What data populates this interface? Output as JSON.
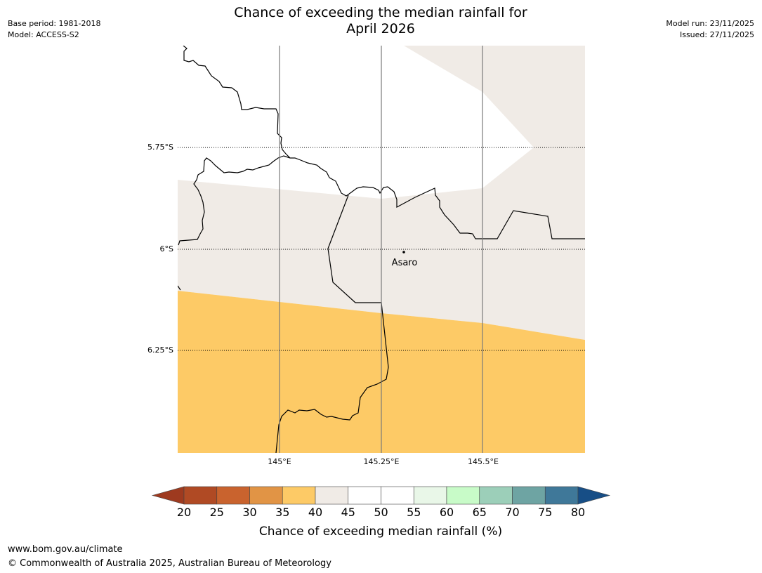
{
  "title": {
    "line1": "Chance of exceeding the median rainfall for",
    "line2": "April 2026"
  },
  "meta": {
    "base_period": "Base period: 1981-2018",
    "model": "Model: ACCESS-S2",
    "model_run": "Model run: 23/11/2025",
    "issued": "Issued: 27/11/2025"
  },
  "map": {
    "latitude_labels": [
      "5.75°S",
      "6°S",
      "6.25°S"
    ],
    "longitude_labels": [
      "145°E",
      "145.25°E",
      "145.5°E"
    ],
    "place_label": "Asaro",
    "colors": {
      "band_35_40": "#fdca66",
      "band_40_45": "#f0ebe6",
      "band_45_55": "#ffffff"
    }
  },
  "legend": {
    "ticks": [
      "20",
      "25",
      "30",
      "35",
      "40",
      "45",
      "50",
      "55",
      "60",
      "65",
      "70",
      "75",
      "80"
    ],
    "colors": [
      "#9e3a1f",
      "#b04a24",
      "#c9632e",
      "#e19445",
      "#fdca66",
      "#f0ebe6",
      "#ffffff",
      "#ffffff",
      "#e9f7e8",
      "#c8fbc8",
      "#9ccfb9",
      "#6ea4a3",
      "#3f7899",
      "#174e86"
    ],
    "label": "Chance of exceeding median rainfall (%)"
  },
  "footer": {
    "url": "www.bom.gov.au/climate",
    "copyright": "© Commonwealth of Australia 2025, Australian Bureau of Meteorology"
  }
}
